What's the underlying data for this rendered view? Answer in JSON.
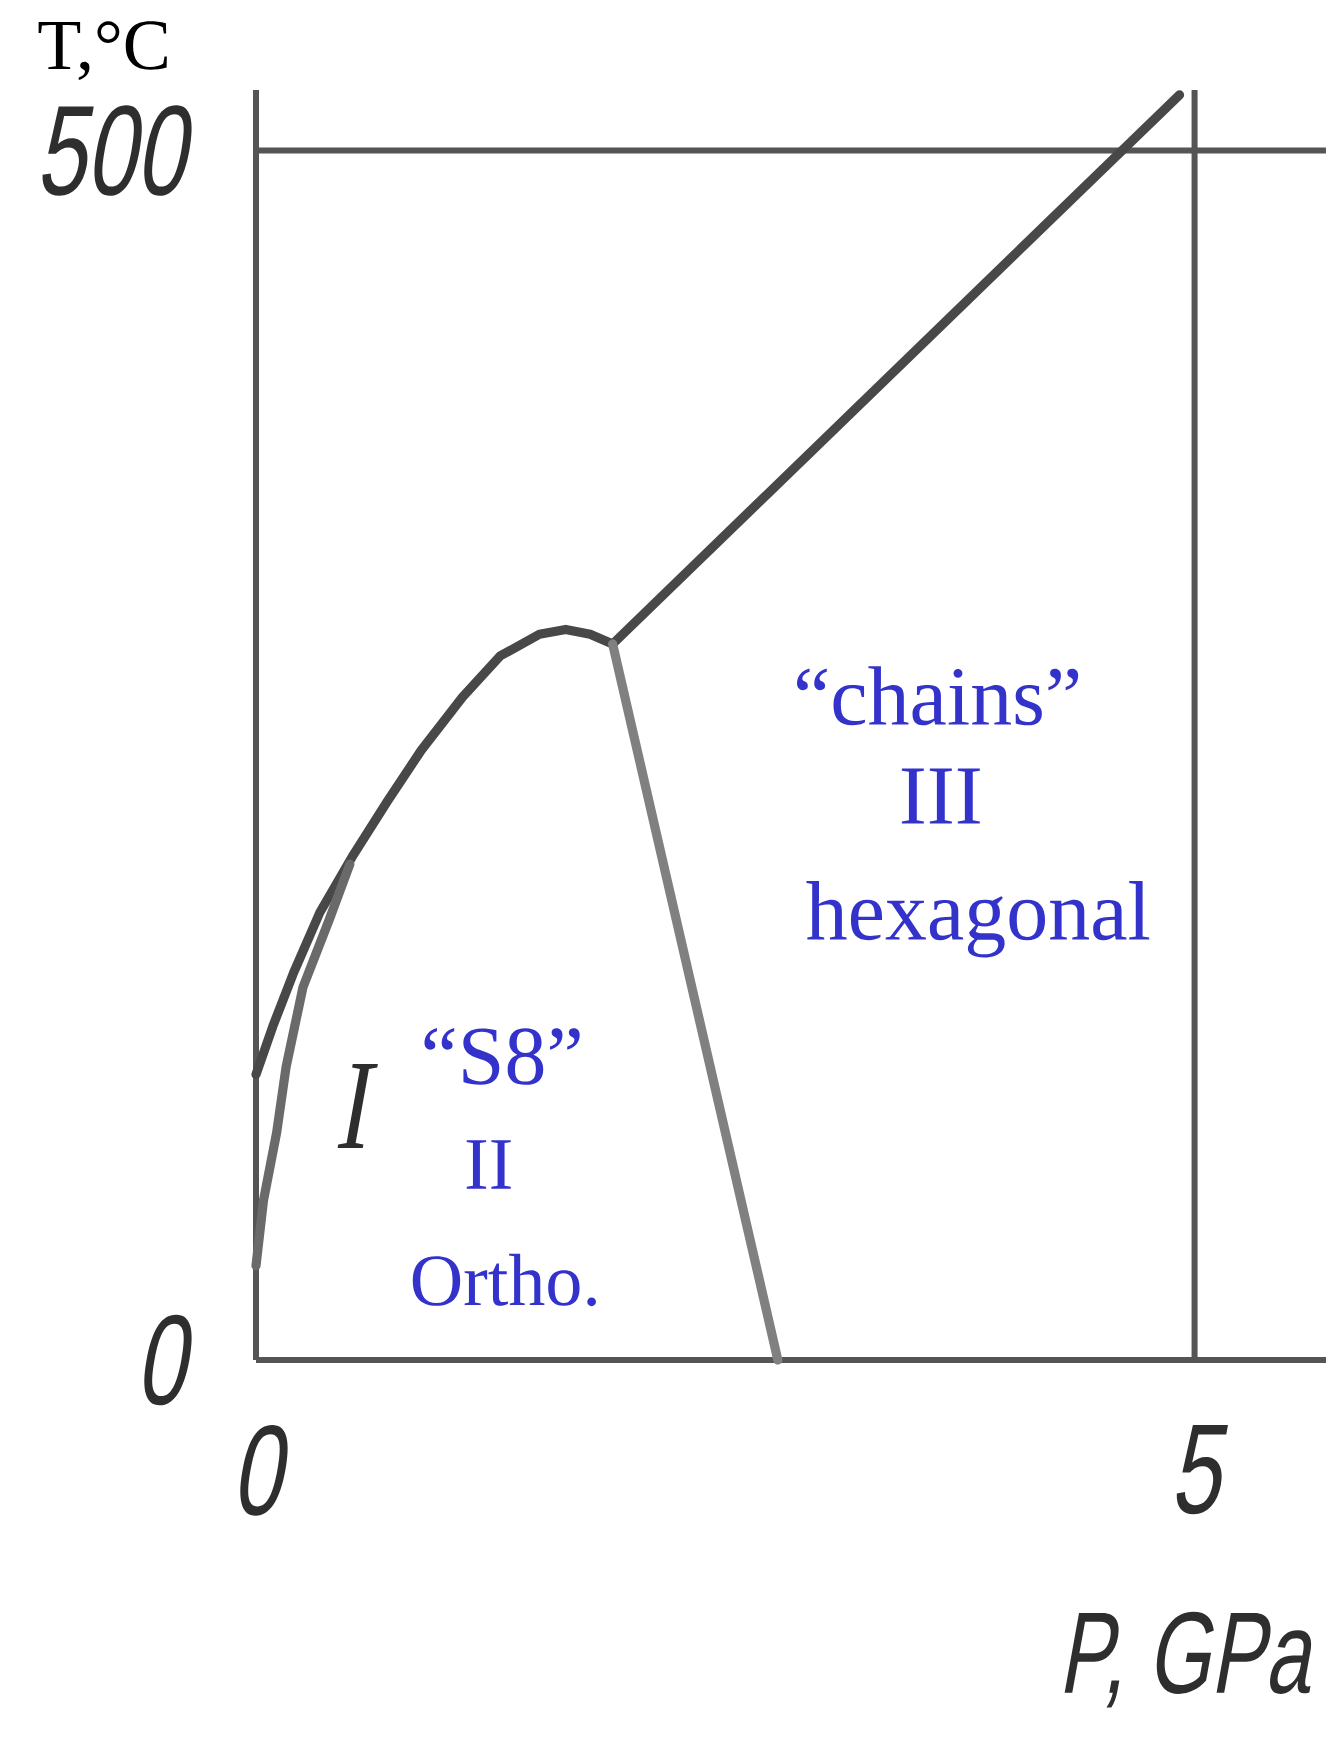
{
  "chart_data": {
    "type": "line",
    "xlabel": "P, GPa",
    "ylabel": "T,°C",
    "xlim": [
      0,
      5.7
    ],
    "ylim": [
      0,
      525
    ],
    "xticks": [
      0,
      5
    ],
    "yticks": [
      0,
      500
    ],
    "grid": true,
    "series": [
      {
        "color": "#484848",
        "x": [
          0,
          0.09,
          0.2,
          0.34,
          0.52,
          0.7,
          0.88,
          1.1,
          1.3,
          1.51,
          1.65,
          1.78,
          1.9
        ],
        "values": [
          118,
          138,
          160,
          185,
          209,
          231,
          252,
          274,
          291,
          300,
          302,
          300,
          296
        ]
      },
      {
        "color": "#484848",
        "x": [
          1.9,
          4.92
        ],
        "values": [
          296,
          523
        ]
      },
      {
        "color": "#808080",
        "x": [
          1.9,
          2.78
        ],
        "values": [
          296,
          0
        ]
      },
      {
        "color": "#6a6a6a",
        "x": [
          0,
          0.04,
          0.11,
          0.16,
          0.25,
          0.39,
          0.5
        ],
        "values": [
          39,
          66,
          94,
          121,
          154,
          182,
          205
        ]
      }
    ],
    "annotations": [
      "“chains”",
      "III",
      "hexagonal",
      "“S8”",
      "I",
      "II",
      "Ortho."
    ]
  }
}
